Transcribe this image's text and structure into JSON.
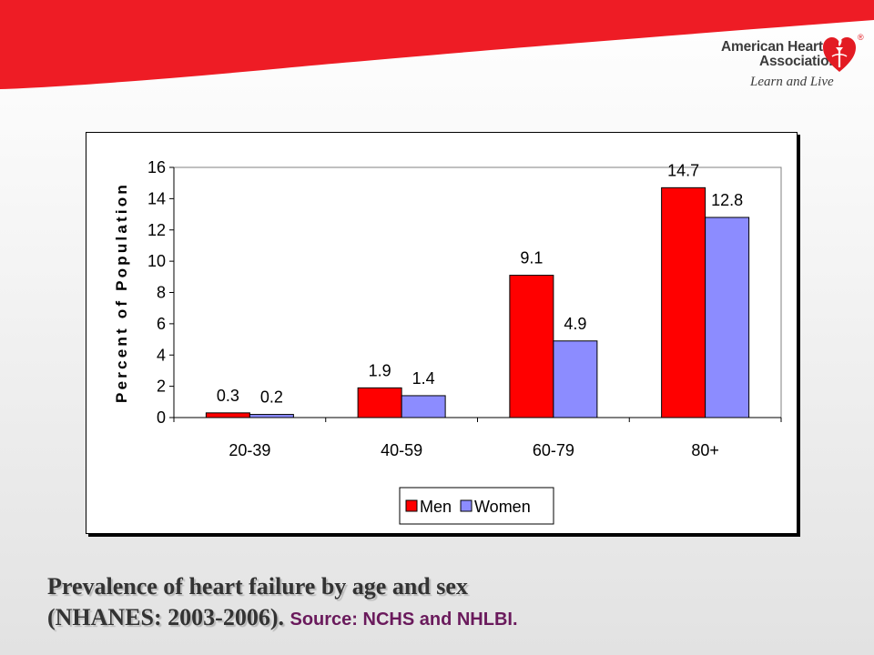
{
  "logo": {
    "line1": "American Heart",
    "line2": "Association",
    "tagline": "Learn and Live",
    "registered_mark": "®",
    "icon": "heart-torch-icon"
  },
  "caption": {
    "line1": "Prevalence of heart failure by age and sex",
    "line2": "(NHANES: 2003-2006).",
    "source": "Source: NCHS and NHLBI."
  },
  "colors": {
    "banner": "#ee1c25",
    "men": "#ff0000",
    "women": "#8c8cff"
  },
  "chart_data": {
    "type": "bar",
    "categories": [
      "20-39",
      "40-59",
      "60-79",
      "80+"
    ],
    "series": [
      {
        "name": "Men",
        "values": [
          0.3,
          1.9,
          9.1,
          14.7
        ],
        "labels": [
          "0.3",
          "1.9",
          "9.1",
          "14.7"
        ],
        "color": "#ff0000"
      },
      {
        "name": "Women",
        "values": [
          0.2,
          1.4,
          4.9,
          12.8
        ],
        "labels": [
          "0.2",
          "1.4",
          "4.9",
          "12.8"
        ],
        "color": "#8c8cff"
      }
    ],
    "ylabel": "Percent of Population",
    "ylim": [
      0,
      16
    ],
    "yticks": [
      "0",
      "2",
      "4",
      "6",
      "8",
      "10",
      "12",
      "14",
      "16"
    ],
    "legend_position": "bottom",
    "grid": false
  }
}
